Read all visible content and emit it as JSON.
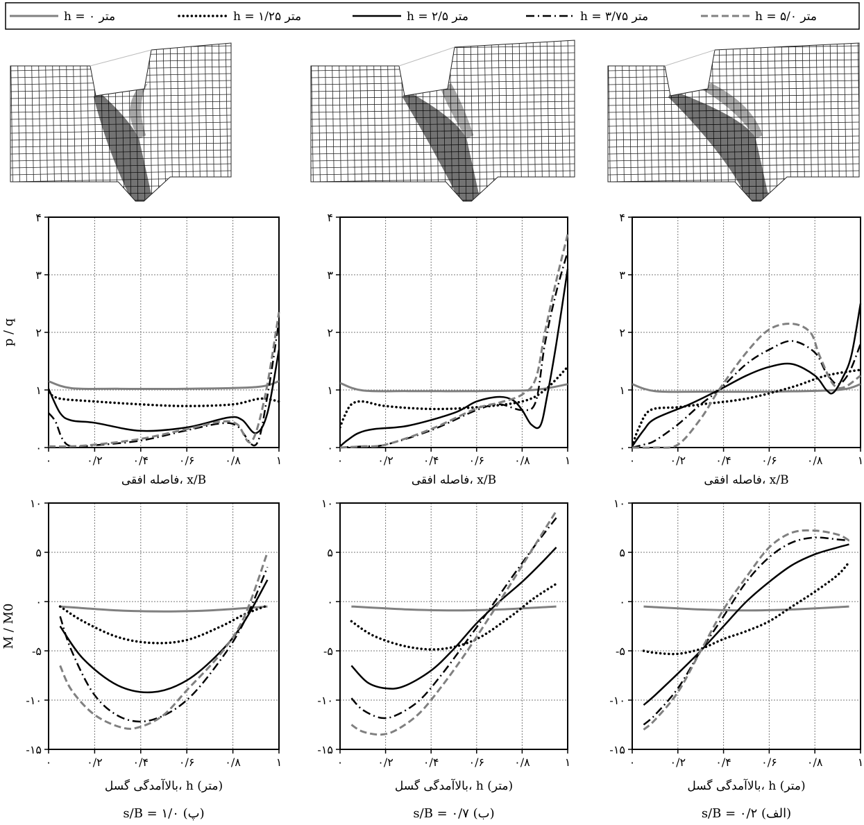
{
  "legend": [
    {
      "label": "h = ۰ متر",
      "color": "#808080",
      "dash": "solid",
      "width": 3
    },
    {
      "label": "h = ۱/۲۵ متر",
      "color": "#000000",
      "dash": "dot",
      "width": 3.5
    },
    {
      "label": "h = ۲/۵ متر",
      "color": "#000000",
      "dash": "solid",
      "width": 2.5
    },
    {
      "label": "h = ۳/۷۵ متر",
      "color": "#000000",
      "dash": "dashdot",
      "width": 2.5
    },
    {
      "label": "h = ۵/۰ متر",
      "color": "#808080",
      "dash": "dash",
      "width": 3
    }
  ],
  "columns": [
    {
      "caption": "s/B = ۱/۰ (پ)"
    },
    {
      "caption": "s/B = ۰/۷ (ب)"
    },
    {
      "caption": "s/B = ۰/۲ (الف)"
    }
  ],
  "x_ticks": [
    "۰",
    "۰/۲",
    "۰/۴",
    "۰/۶",
    "۰/۸",
    "۱"
  ],
  "pressure": {
    "ylabel": "p / q",
    "xlabel": "فاصله افقی، x/B",
    "y_ticks": [
      "۰",
      "۱",
      "۲",
      "۳",
      "۴"
    ]
  },
  "moment": {
    "ylabel": "M / M0",
    "xlabel": "بالاآمدگی گسل، h (متر)",
    "y_ticks": [
      "-۱۵",
      "-۱۰",
      "-۵",
      "۰",
      "۵",
      "۱۰"
    ]
  },
  "chart_data": [
    {
      "type": "line",
      "panel": "pressure",
      "column": "s/B = ۱/۰ (پ)",
      "xlim": [
        0,
        1
      ],
      "ylim": [
        0,
        4
      ],
      "grid": true,
      "series": [
        {
          "name": "h = ۰ متر",
          "x": [
            0,
            0.1,
            0.3,
            0.6,
            0.9,
            1
          ],
          "y": [
            1.15,
            1.03,
            1.02,
            1.02,
            1.05,
            1.15
          ]
        },
        {
          "name": "h = ۱/۲۵ متر",
          "x": [
            0,
            0.05,
            0.2,
            0.4,
            0.6,
            0.8,
            0.92,
            1
          ],
          "y": [
            0.95,
            0.85,
            0.8,
            0.75,
            0.72,
            0.75,
            0.85,
            0.8
          ]
        },
        {
          "name": "h = ۲/۵ متر",
          "x": [
            0,
            0.05,
            0.1,
            0.2,
            0.4,
            0.6,
            0.78,
            0.84,
            0.9,
            0.95,
            1
          ],
          "y": [
            1.02,
            0.6,
            0.47,
            0.43,
            0.29,
            0.35,
            0.52,
            0.48,
            0.25,
            0.6,
            1.7
          ]
        },
        {
          "name": "h = ۳/۷۵ متر",
          "x": [
            0,
            0.03,
            0.06,
            0.1,
            0.2,
            0.4,
            0.6,
            0.75,
            0.82,
            0.9,
            0.95,
            1
          ],
          "y": [
            0.6,
            0.45,
            0.15,
            0.02,
            0.04,
            0.12,
            0.3,
            0.42,
            0.37,
            0.05,
            0.9,
            2.2
          ]
        },
        {
          "name": "h = ۵/۰ متر",
          "x": [
            0,
            0.1,
            0.2,
            0.4,
            0.6,
            0.75,
            0.82,
            0.88,
            0.94,
            1
          ],
          "y": [
            0.02,
            0.02,
            0.05,
            0.15,
            0.32,
            0.45,
            0.4,
            0.1,
            0.9,
            2.35
          ]
        }
      ]
    },
    {
      "type": "line",
      "panel": "pressure",
      "column": "s/B = ۰/۷ (ب)",
      "xlim": [
        0,
        1
      ],
      "ylim": [
        0,
        4
      ],
      "grid": true,
      "series": [
        {
          "name": "h = ۰ متر",
          "x": [
            0,
            0.1,
            0.3,
            0.6,
            0.85,
            1
          ],
          "y": [
            1.12,
            0.99,
            0.98,
            0.98,
            1.0,
            1.1
          ]
        },
        {
          "name": "h = ۱/۲۵ متر",
          "x": [
            0,
            0.02,
            0.05,
            0.1,
            0.2,
            0.4,
            0.6,
            0.8,
            0.9,
            1
          ],
          "y": [
            0.35,
            0.55,
            0.75,
            0.8,
            0.72,
            0.67,
            0.7,
            0.8,
            1.0,
            1.4
          ]
        },
        {
          "name": "h = ۲/۵ متر",
          "x": [
            0,
            0.03,
            0.08,
            0.15,
            0.3,
            0.5,
            0.6,
            0.7,
            0.76,
            0.8,
            0.84,
            0.88,
            0.91,
            0.95,
            1
          ],
          "y": [
            0.02,
            0.12,
            0.25,
            0.32,
            0.38,
            0.6,
            0.8,
            0.88,
            0.82,
            0.65,
            0.4,
            0.38,
            0.9,
            1.8,
            3.1
          ]
        },
        {
          "name": "h = ۳/۷۵ متر",
          "x": [
            0,
            0.1,
            0.2,
            0.4,
            0.6,
            0.7,
            0.8,
            0.86,
            0.9,
            0.95,
            1
          ],
          "y": [
            0.0,
            0.02,
            0.05,
            0.3,
            0.65,
            0.75,
            0.65,
            0.8,
            1.8,
            2.7,
            3.4
          ]
        },
        {
          "name": "h = ۵/۰ متر",
          "x": [
            0,
            0.1,
            0.2,
            0.4,
            0.6,
            0.7,
            0.8,
            0.86,
            0.9,
            0.95,
            1
          ],
          "y": [
            0.0,
            0.02,
            0.05,
            0.32,
            0.68,
            0.78,
            0.92,
            1.2,
            2.0,
            2.9,
            3.7
          ]
        }
      ]
    },
    {
      "type": "line",
      "panel": "pressure",
      "column": "s/B = ۰/۲ (الف)",
      "xlim": [
        0,
        1
      ],
      "ylim": [
        0,
        4
      ],
      "grid": true,
      "series": [
        {
          "name": "h = ۰ متر",
          "x": [
            0,
            0.1,
            0.3,
            0.6,
            0.9,
            1
          ],
          "y": [
            1.1,
            0.98,
            0.97,
            0.97,
            1.0,
            1.1
          ]
        },
        {
          "name": "h = ۱/۲۵ متر",
          "x": [
            0,
            0.03,
            0.08,
            0.2,
            0.3,
            0.5,
            0.7,
            0.85,
            1
          ],
          "y": [
            0.02,
            0.35,
            0.65,
            0.7,
            0.75,
            0.85,
            1.05,
            1.25,
            1.35
          ]
        },
        {
          "name": "h = ۲/۵ متر",
          "x": [
            0,
            0.05,
            0.1,
            0.25,
            0.38,
            0.5,
            0.6,
            0.7,
            0.8,
            0.85,
            0.88,
            0.92,
            0.96,
            1
          ],
          "y": [
            0.02,
            0.3,
            0.5,
            0.75,
            1.0,
            1.25,
            1.4,
            1.45,
            1.25,
            1.0,
            0.95,
            1.2,
            1.6,
            2.5
          ]
        },
        {
          "name": "h = ۳/۷۵ متر",
          "x": [
            0,
            0.05,
            0.1,
            0.2,
            0.3,
            0.38,
            0.5,
            0.6,
            0.7,
            0.8,
            0.85,
            0.9,
            0.95,
            1
          ],
          "y": [
            0.0,
            0.05,
            0.12,
            0.4,
            0.75,
            1.0,
            1.45,
            1.7,
            1.85,
            1.65,
            1.3,
            1.1,
            1.3,
            1.8
          ]
        },
        {
          "name": "h = ۵/۰ متر",
          "x": [
            0,
            0.1,
            0.2,
            0.3,
            0.38,
            0.5,
            0.6,
            0.7,
            0.78,
            0.82,
            0.88,
            0.93,
            1
          ],
          "y": [
            0.0,
            0.0,
            0.05,
            0.5,
            1.0,
            1.65,
            2.05,
            2.15,
            2.0,
            1.6,
            1.1,
            1.05,
            1.25
          ]
        }
      ]
    },
    {
      "type": "line",
      "panel": "moment",
      "column": "s/B = ۱/۰ (پ)",
      "xlim": [
        0,
        1
      ],
      "ylim": [
        -15,
        10
      ],
      "grid": true,
      "series": [
        {
          "name": "h = ۰ متر",
          "x": [
            0.05,
            0.3,
            0.5,
            0.7,
            0.95
          ],
          "y": [
            -0.5,
            -0.9,
            -1.0,
            -0.9,
            -0.5
          ]
        },
        {
          "name": "h = ۱/۲۵ متر",
          "x": [
            0.05,
            0.15,
            0.3,
            0.45,
            0.6,
            0.75,
            0.85,
            0.95
          ],
          "y": [
            -0.5,
            -2.0,
            -3.6,
            -4.2,
            -3.9,
            -2.5,
            -1.3,
            -0.4
          ]
        },
        {
          "name": "h = ۲/۵ متر",
          "x": [
            0.05,
            0.15,
            0.3,
            0.45,
            0.6,
            0.75,
            0.85,
            0.95
          ],
          "y": [
            -2.5,
            -5.8,
            -8.5,
            -9.2,
            -8.0,
            -5.0,
            -2.0,
            2.2
          ]
        },
        {
          "name": "h = ۳/۷۵ متر",
          "x": [
            0.05,
            0.1,
            0.2,
            0.32,
            0.45,
            0.6,
            0.75,
            0.85,
            0.95
          ],
          "y": [
            -1.5,
            -5.0,
            -9.5,
            -11.8,
            -12.0,
            -10.0,
            -5.8,
            -2.0,
            3.5
          ]
        },
        {
          "name": "h = ۵/۰ متر",
          "x": [
            0.05,
            0.1,
            0.2,
            0.32,
            0.4,
            0.5,
            0.6,
            0.75,
            0.85,
            0.95
          ],
          "y": [
            -6.5,
            -9.0,
            -11.5,
            -12.8,
            -12.7,
            -11.5,
            -9.0,
            -5.2,
            -1.5,
            5.0
          ]
        }
      ]
    },
    {
      "type": "line",
      "panel": "moment",
      "column": "s/B = ۰/۷ (ب)",
      "xlim": [
        0,
        1
      ],
      "ylim": [
        -15,
        10
      ],
      "grid": true,
      "series": [
        {
          "name": "h = ۰ متر",
          "x": [
            0.05,
            0.3,
            0.5,
            0.7,
            0.95
          ],
          "y": [
            -0.5,
            -0.8,
            -0.9,
            -0.8,
            -0.5
          ]
        },
        {
          "name": "h = ۱/۲۵ متر",
          "x": [
            0.05,
            0.15,
            0.3,
            0.45,
            0.6,
            0.75,
            0.85,
            0.95
          ],
          "y": [
            -2.0,
            -3.5,
            -4.6,
            -4.8,
            -3.8,
            -1.5,
            0.3,
            1.8
          ]
        },
        {
          "name": "h = ۲/۵ متر",
          "x": [
            0.05,
            0.12,
            0.2,
            0.28,
            0.4,
            0.5,
            0.6,
            0.7,
            0.8,
            0.88,
            0.95
          ],
          "y": [
            -6.5,
            -8.2,
            -8.8,
            -8.6,
            -7.0,
            -4.8,
            -2.2,
            0.0,
            2.0,
            3.8,
            5.5
          ]
        },
        {
          "name": "h = ۳/۷۵ متر",
          "x": [
            0.05,
            0.1,
            0.18,
            0.25,
            0.35,
            0.45,
            0.55,
            0.65,
            0.75,
            0.85,
            0.95
          ],
          "y": [
            -9.8,
            -11.0,
            -11.8,
            -11.5,
            -10.0,
            -7.3,
            -4.2,
            -1.0,
            2.3,
            5.5,
            8.5
          ]
        },
        {
          "name": "h = ۵/۰ متر",
          "x": [
            0.05,
            0.1,
            0.18,
            0.25,
            0.35,
            0.45,
            0.55,
            0.65,
            0.75,
            0.85,
            0.95
          ],
          "y": [
            -12.5,
            -13.2,
            -13.5,
            -13.0,
            -11.3,
            -8.5,
            -5.3,
            -1.8,
            1.8,
            5.5,
            9.2
          ]
        }
      ]
    },
    {
      "type": "line",
      "panel": "moment",
      "column": "s/B = ۰/۲ (الف)",
      "xlim": [
        0,
        1
      ],
      "ylim": [
        -15,
        10
      ],
      "grid": true,
      "series": [
        {
          "name": "h = ۰ متر",
          "x": [
            0.05,
            0.3,
            0.5,
            0.7,
            0.95
          ],
          "y": [
            -0.5,
            -0.8,
            -0.9,
            -0.8,
            -0.5
          ]
        },
        {
          "name": "h = ۱/۲۵ متر",
          "x": [
            0.05,
            0.1,
            0.2,
            0.3,
            0.4,
            0.5,
            0.6,
            0.7,
            0.8,
            0.9,
            0.95
          ],
          "y": [
            -5.0,
            -5.2,
            -5.3,
            -4.8,
            -3.8,
            -3.0,
            -2.0,
            -0.5,
            1.0,
            2.7,
            4.0
          ]
        },
        {
          "name": "h = ۲/۵ متر",
          "x": [
            0.05,
            0.1,
            0.2,
            0.3,
            0.4,
            0.5,
            0.6,
            0.7,
            0.8,
            0.9,
            0.95
          ],
          "y": [
            -10.5,
            -9.5,
            -7.3,
            -5.0,
            -2.5,
            0.0,
            2.0,
            3.7,
            4.8,
            5.5,
            5.8
          ]
        },
        {
          "name": "h = ۳/۷۵ متر",
          "x": [
            0.05,
            0.1,
            0.2,
            0.3,
            0.4,
            0.5,
            0.6,
            0.7,
            0.8,
            0.9,
            0.95
          ],
          "y": [
            -12.5,
            -11.5,
            -8.8,
            -5.0,
            -1.5,
            2.0,
            4.5,
            6.0,
            6.5,
            6.3,
            6.2
          ]
        },
        {
          "name": "h = ۵/۰ متر",
          "x": [
            0.05,
            0.1,
            0.2,
            0.3,
            0.4,
            0.5,
            0.6,
            0.7,
            0.8,
            0.9,
            0.95
          ],
          "y": [
            -13.0,
            -12.0,
            -9.2,
            -5.0,
            -0.8,
            2.5,
            5.5,
            7.0,
            7.2,
            6.8,
            6.2
          ]
        }
      ]
    }
  ]
}
